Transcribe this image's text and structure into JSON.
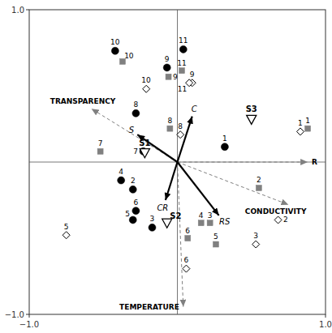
{
  "chart_data": {
    "type": "biplot",
    "xlim": [
      -1.0,
      1.0
    ],
    "ylim": [
      -1.0,
      1.0
    ],
    "xticks": [
      {
        "value": -1.0,
        "label": "−1.0"
      },
      {
        "value": 1.0,
        "label": "1.0"
      }
    ],
    "yticks": [
      {
        "value": -1.0,
        "label": "−1.0"
      },
      {
        "value": 1.0,
        "label": "1.0"
      }
    ],
    "vectors": [
      {
        "name": "R",
        "dx": 0.88,
        "dy": 0.0,
        "color": "#808080",
        "line_style": "dashed"
      },
      {
        "name": "TRANSPARENCY",
        "dx": -0.58,
        "dy": 0.35,
        "color": "#808080",
        "line_style": "dashed"
      },
      {
        "name": "TEMPERATURE",
        "dx": 0.04,
        "dy": -0.95,
        "color": "#808080",
        "line_style": "dashed"
      },
      {
        "name": "CONDUCTIVITY",
        "dx": 0.75,
        "dy": -0.28,
        "color": "#808080",
        "line_style": "dashed"
      },
      {
        "name": "C",
        "dx": 0.1,
        "dy": 0.3,
        "color": "#000000",
        "line_style": "solid"
      },
      {
        "name": "S",
        "dx": -0.27,
        "dy": 0.18,
        "color": "#000000",
        "line_style": "solid"
      },
      {
        "name": "CR",
        "dx": -0.08,
        "dy": -0.25,
        "color": "#000000",
        "line_style": "solid"
      },
      {
        "name": "RS",
        "dx": 0.28,
        "dy": -0.35,
        "color": "#000000",
        "line_style": "solid"
      }
    ],
    "series": [
      {
        "marker": "triangle-down",
        "labels": [
          "S1",
          "S2",
          "S3"
        ],
        "x": [
          -0.22,
          -0.07,
          0.5
        ],
        "values": [
          0.06,
          -0.4,
          0.28
        ]
      },
      {
        "marker": "circle",
        "color": "#000000",
        "labels": [
          "10",
          "9",
          "11",
          "8",
          "7",
          "1",
          "2",
          "4",
          "6",
          "5",
          "3"
        ],
        "x": [
          -0.42,
          -0.07,
          0.04,
          -0.28,
          -0.23,
          0.32,
          -0.3,
          -0.38,
          -0.28,
          -0.3,
          -0.17
        ],
        "values": [
          0.73,
          0.62,
          0.74,
          0.32,
          0.07,
          0.1,
          -0.18,
          -0.12,
          -0.32,
          -0.38,
          -0.43
        ]
      },
      {
        "marker": "square",
        "color": "#808080",
        "labels": [
          "10",
          "9",
          "11",
          "8",
          "7",
          "2",
          "4",
          "3",
          "6",
          "5",
          "1"
        ],
        "x": [
          -0.37,
          -0.06,
          0.03,
          -0.05,
          -0.52,
          0.55,
          0.16,
          0.22,
          0.07,
          0.26,
          0.88
        ],
        "values": [
          0.66,
          0.56,
          0.6,
          0.22,
          0.07,
          -0.17,
          -0.4,
          -0.4,
          -0.5,
          -0.54,
          0.22
        ]
      },
      {
        "marker": "diamond",
        "labels": [
          "10",
          "9",
          "11",
          "8",
          "5",
          "2",
          "3",
          "6",
          "1"
        ],
        "x": [
          -0.21,
          0.1,
          0.08,
          0.02,
          -0.75,
          0.68,
          0.53,
          0.06,
          0.83
        ],
        "values": [
          0.48,
          0.52,
          0.52,
          0.18,
          -0.48,
          -0.38,
          -0.54,
          -0.7,
          0.2
        ]
      }
    ]
  }
}
